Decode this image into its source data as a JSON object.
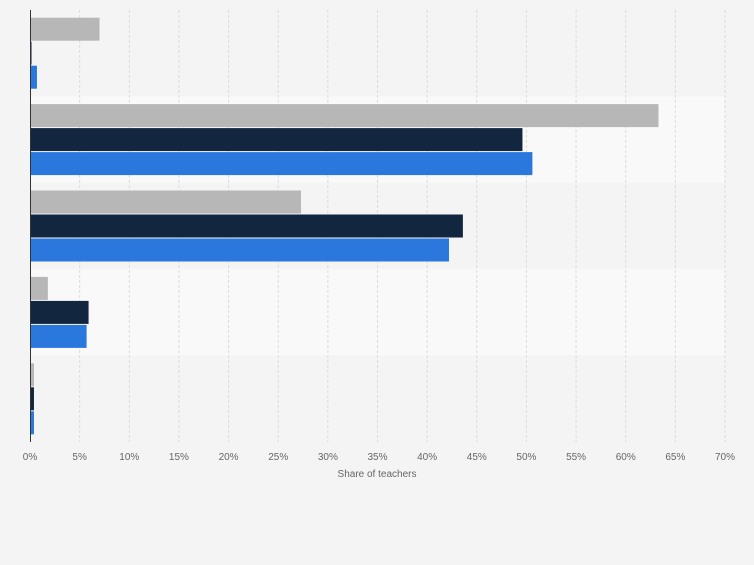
{
  "chart_data": {
    "type": "bar",
    "orientation": "horizontal",
    "categories": [
      "",
      "",
      "",
      "",
      ""
    ],
    "series": [
      {
        "color": "#b7b7b7",
        "values": [
          7,
          63.3,
          27.3,
          1.8,
          0.4
        ]
      },
      {
        "color": "#122640",
        "values": [
          0.1,
          49.6,
          43.6,
          5.9,
          0.4
        ]
      },
      {
        "color": "#2a77de",
        "values": [
          0.7,
          50.6,
          42.2,
          5.7,
          0.4
        ]
      }
    ],
    "xlabel": "Share of teachers",
    "ylabel": "",
    "xlim": [
      0,
      70
    ],
    "xticks": [
      "0%",
      "5%",
      "10%",
      "15%",
      "20%",
      "25%",
      "30%",
      "35%",
      "40%",
      "45%",
      "50%",
      "55%",
      "60%",
      "65%",
      "70%"
    ],
    "grid": true,
    "legend": "none"
  },
  "colors": {
    "background": "#f4f4f4",
    "band_light": "#f9f9f9",
    "band_dark": "#f4f4f4",
    "gridline": "#dcdcdc",
    "tick_text": "#666666",
    "axis_title": "#666666"
  }
}
